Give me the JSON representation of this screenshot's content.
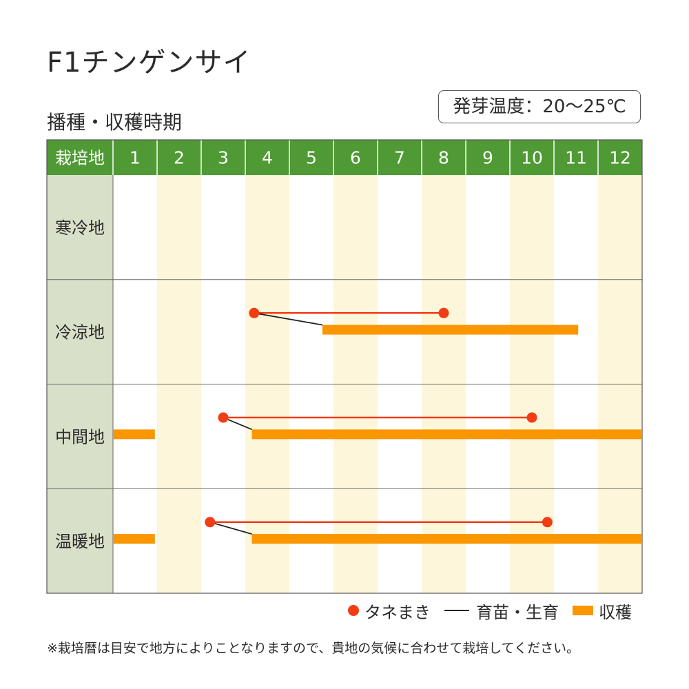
{
  "title": "F1チンゲンサイ",
  "subtitle": "播種・収穫時期",
  "germination_temp": "発芽温度：20〜25℃",
  "note": "※栽培暦は目安で地方によりことなりますので、貴地の気候に合わせて栽培してください。",
  "colors": {
    "header_green": "#4f9a34",
    "region_bg": "#d8e0c9",
    "alt_month_bg": "#fdf6db",
    "sowing_red": "#f23c14",
    "harvest_orange": "#fa9600",
    "seedling_black": "#222222"
  },
  "chart_data": {
    "type": "gantt",
    "header_label": "栽培地",
    "months": [
      "1",
      "2",
      "3",
      "4",
      "5",
      "6",
      "7",
      "8",
      "9",
      "10",
      "11",
      "12"
    ],
    "legend": [
      {
        "key": "sowing",
        "label": "タネまき"
      },
      {
        "key": "seedling",
        "label": "育苗・生育"
      },
      {
        "key": "harvest",
        "label": "収穫"
      }
    ],
    "regions": [
      {
        "name": "寒冷地",
        "sowing": [],
        "harvest": []
      },
      {
        "name": "冷涼地",
        "sowing": [
          [
            4.2,
            8.5
          ]
        ],
        "harvest": [
          [
            5.75,
            11.55
          ]
        ]
      },
      {
        "name": "中間地",
        "sowing": [
          [
            3.5,
            10.5
          ]
        ],
        "harvest": [
          [
            1.0,
            1.95
          ],
          [
            4.15,
            13.0
          ]
        ]
      },
      {
        "name": "温暖地",
        "sowing": [
          [
            3.2,
            10.85
          ]
        ],
        "harvest": [
          [
            1.0,
            1.95
          ],
          [
            4.15,
            13.0
          ]
        ]
      }
    ]
  }
}
